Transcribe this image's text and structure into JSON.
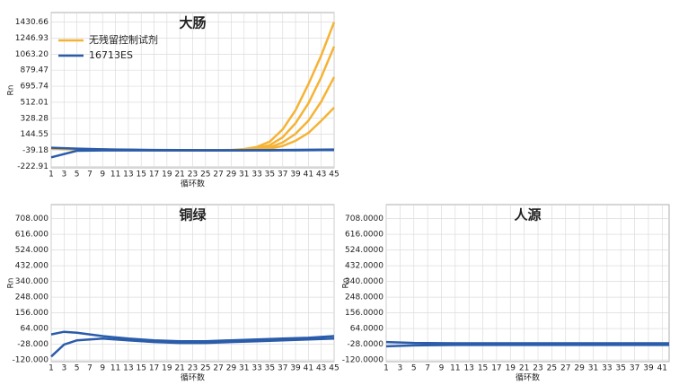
{
  "chart_data": [
    {
      "type": "line",
      "title": "大肠",
      "xlabel": "循环数",
      "ylabel": "Rn",
      "grid": true,
      "legend": "upper left",
      "x": [
        1,
        5,
        9,
        13,
        17,
        21,
        25,
        29,
        31,
        33,
        35,
        37,
        39,
        41,
        43,
        45
      ],
      "xlim": [
        1,
        45
      ],
      "xticks": [
        1,
        3,
        5,
        7,
        9,
        11,
        13,
        15,
        17,
        19,
        21,
        23,
        25,
        27,
        29,
        31,
        33,
        35,
        37,
        39,
        41,
        43,
        45
      ],
      "ylim": [
        -240,
        1540
      ],
      "yticks": [
        -222.91,
        -39.18,
        144.55,
        328.28,
        512.01,
        695.74,
        {
          "value": 879.47,
          "label": "879.47"
        },
        {
          "value": 1063.2,
          "label": "1063.20"
        },
        1246.93,
        1430.66
      ],
      "series": [
        {
          "name": "无残留控制试剂",
          "color": "#f5b335",
          "curves": [
            [
              -20,
              -25,
              -30,
              -35,
              -38,
              -39,
              -39,
              -35,
              -25,
              0,
              60,
              200,
              420,
              720,
              1050,
              1430
            ],
            [
              -20,
              -25,
              -30,
              -35,
              -38,
              -39,
              -39,
              -38,
              -33,
              -15,
              20,
              110,
              270,
              500,
              800,
              1150
            ],
            [
              -20,
              -25,
              -30,
              -35,
              -38,
              -39,
              -39,
              -39,
              -37,
              -28,
              -5,
              50,
              150,
              300,
              520,
              800
            ],
            [
              -20,
              -25,
              -30,
              -35,
              -38,
              -39,
              -39,
              -39,
              -39,
              -35,
              -20,
              10,
              70,
              160,
              300,
              450
            ]
          ]
        },
        {
          "name": "16713ES",
          "color": "#2a5caa",
          "curves": [
            [
              -10,
              -20,
              -28,
              -32,
              -35,
              -37,
              -38,
              -38,
              -38,
              -37,
              -36,
              -35,
              -34,
              -33,
              -32,
              -30
            ],
            [
              -120,
              -45,
              -40,
              -40,
              -40,
              -40,
              -40,
              -40,
              -40,
              -40,
              -40,
              -39,
              -39,
              -38,
              -37,
              -36
            ]
          ]
        }
      ]
    },
    {
      "type": "line",
      "title": "铜绿",
      "xlabel": "循环数",
      "ylabel": "Rn",
      "grid": true,
      "x": [
        1,
        3,
        5,
        9,
        13,
        17,
        21,
        25,
        29,
        33,
        37,
        41,
        45
      ],
      "xlim": [
        1,
        45
      ],
      "xticks": [
        1,
        3,
        5,
        7,
        9,
        11,
        13,
        15,
        17,
        19,
        21,
        23,
        25,
        27,
        29,
        31,
        33,
        35,
        37,
        39,
        41,
        43,
        45
      ],
      "ylim": [
        -130,
        790
      ],
      "yticks": [
        {
          "value": -120,
          "label": "-120.000"
        },
        {
          "value": -28,
          "label": "-28.000"
        },
        {
          "value": 64,
          "label": "64.000"
        },
        {
          "value": 156,
          "label": "156.000"
        },
        {
          "value": 248,
          "label": "248.000"
        },
        {
          "value": 340,
          "label": "340.000"
        },
        {
          "value": 432,
          "label": "432.000"
        },
        {
          "value": 524,
          "label": "524.000"
        },
        {
          "value": 616,
          "label": "616.000"
        },
        {
          "value": 708,
          "label": "708.000"
        }
      ],
      "series": [
        {
          "color": "#2a5caa",
          "curves": [
            [
              30,
              45,
              40,
              20,
              5,
              -5,
              -10,
              -10,
              -5,
              0,
              5,
              10,
              20
            ],
            [
              -100,
              -30,
              -5,
              5,
              -5,
              -15,
              -20,
              -20,
              -15,
              -10,
              -5,
              0,
              5
            ]
          ]
        }
      ]
    },
    {
      "type": "line",
      "title": "人源",
      "xlabel": "循环数",
      "ylabel": "Rn",
      "grid": true,
      "x": [
        1,
        5,
        11,
        21,
        31,
        42
      ],
      "xlim": [
        1,
        42
      ],
      "xticks": [
        1,
        3,
        5,
        7,
        9,
        11,
        13,
        15,
        17,
        19,
        21,
        23,
        25,
        27,
        29,
        31,
        33,
        35,
        37,
        39,
        41
      ],
      "ylim": [
        -130,
        790
      ],
      "yticks": [
        {
          "value": -120,
          "label": "-120.0000"
        },
        {
          "value": -28,
          "label": "-28.0000"
        },
        {
          "value": 64,
          "label": "64.0000"
        },
        {
          "value": 156,
          "label": "156.0000"
        },
        {
          "value": 248,
          "label": "248.0000"
        },
        {
          "value": 340,
          "label": "340.0000"
        },
        {
          "value": 432,
          "label": "432.0000"
        },
        {
          "value": 524,
          "label": "524.0000"
        },
        {
          "value": 616,
          "label": "616.0000"
        },
        {
          "value": 708,
          "label": "708.0000"
        }
      ],
      "series": [
        {
          "color": "#2a5caa",
          "curves": [
            [
              -15,
              -20,
              -22,
              -22,
              -22,
              -22
            ],
            [
              -40,
              -35,
              -32,
              -32,
              -32,
              -32
            ]
          ]
        }
      ]
    }
  ]
}
